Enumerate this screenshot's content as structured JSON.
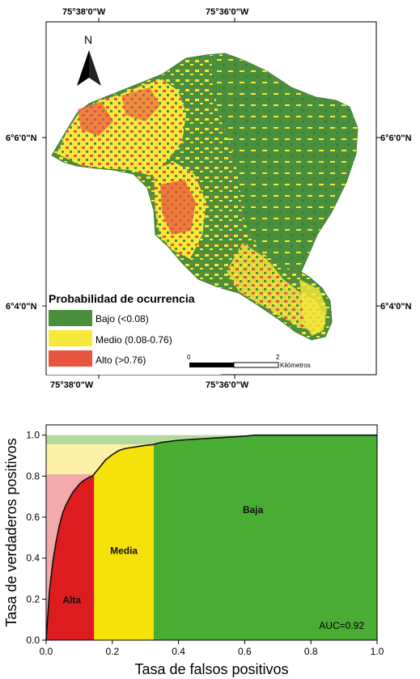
{
  "map": {
    "coords": {
      "top_left": "75°38'0\"W",
      "top_right": "75°36'0\"W",
      "bottom_left": "75°38'0\"W",
      "bottom_right": "75°36'0\"W",
      "left_upper": "6°6'0\"N",
      "left_lower": "6°4'0\"N",
      "right_upper": "6°6'0\"N",
      "right_lower": "6°4'0\"N"
    },
    "north_label": "N",
    "legend": {
      "title": "Probabilidad de ocurrencia",
      "items": [
        {
          "label": "Bajo (<0.08)",
          "color": "#4a8f3c"
        },
        {
          "label": "Medio (0.08-0.76)",
          "color": "#f7e83a"
        },
        {
          "label": "Alto (>0.76)",
          "color": "#e8553e"
        }
      ]
    },
    "scalebar": {
      "start": "0",
      "end": "2",
      "unit": "Kilómetros"
    }
  },
  "chart_data": {
    "type": "line",
    "xlabel": "Tasa de falsos positivos",
    "ylabel": "Tasa de verdaderos positivos",
    "xlim": [
      0,
      1
    ],
    "ylim": [
      0,
      1.05
    ],
    "xticks": [
      "0.0",
      "0.2",
      "0.4",
      "0.6",
      "0.8",
      "1.0"
    ],
    "yticks": [
      "0.0",
      "0.2",
      "0.4",
      "0.6",
      "0.8",
      "1.0"
    ],
    "annotation": "AUC=0.92",
    "zones": [
      {
        "label": "Alta",
        "x0": 0.0,
        "x1": 0.145,
        "y0": 0.0,
        "y1": 0.81,
        "color": "#dc1c1f",
        "light": "#f2aaaa"
      },
      {
        "label": "Media",
        "x0": 0.145,
        "x1": 0.325,
        "y0": 0.81,
        "y1": 0.955,
        "color": "#f5e20a",
        "light": "#fbf0a6"
      },
      {
        "label": "Baja",
        "x0": 0.325,
        "x1": 1.0,
        "y0": 0.955,
        "y1": 1.0,
        "color": "#4aad33",
        "light": "#b5d99c"
      }
    ],
    "roc_curve": {
      "x": [
        0,
        0.005,
        0.01,
        0.02,
        0.03,
        0.04,
        0.05,
        0.06,
        0.07,
        0.08,
        0.09,
        0.1,
        0.11,
        0.12,
        0.13,
        0.14,
        0.145,
        0.16,
        0.18,
        0.2,
        0.22,
        0.24,
        0.26,
        0.28,
        0.3,
        0.32,
        0.325,
        0.35,
        0.4,
        0.45,
        0.5,
        0.55,
        0.6,
        0.63,
        0.65,
        0.7,
        0.8,
        0.9,
        1.0
      ],
      "y": [
        0,
        0.12,
        0.24,
        0.38,
        0.48,
        0.56,
        0.62,
        0.66,
        0.69,
        0.72,
        0.74,
        0.76,
        0.775,
        0.785,
        0.795,
        0.8,
        0.81,
        0.84,
        0.88,
        0.905,
        0.925,
        0.935,
        0.94,
        0.945,
        0.95,
        0.953,
        0.955,
        0.965,
        0.975,
        0.98,
        0.985,
        0.99,
        0.995,
        1.0,
        1.0,
        1.0,
        1.0,
        1.0,
        1.0
      ]
    }
  }
}
